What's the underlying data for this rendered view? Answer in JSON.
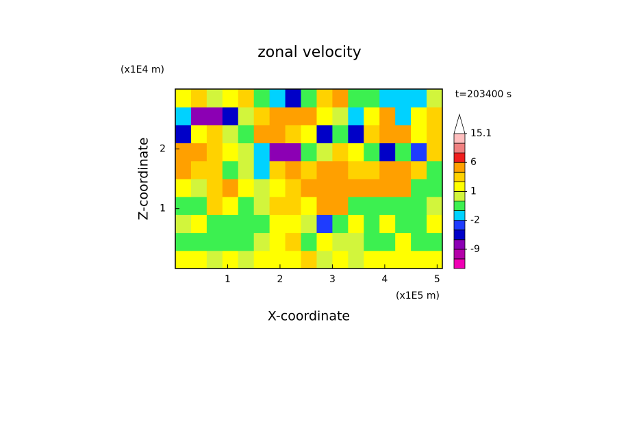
{
  "chart_data": {
    "type": "contour",
    "title": "zonal velocity",
    "x_label": "X-coordinate",
    "y_label": "Z-coordinate",
    "x_unit_label": "(x1E5 m)",
    "y_unit_label": "(x1E4 m)",
    "annotation": "t=203400 s",
    "xlim": [
      0,
      5.1
    ],
    "ylim": [
      0,
      3
    ],
    "xticks": [
      1,
      2,
      3,
      4,
      5
    ],
    "yticks": [
      1,
      2
    ],
    "contour_levels": [
      -15,
      -12,
      -9,
      -6,
      -3,
      -2,
      -1,
      0,
      1,
      2,
      3,
      6,
      9,
      12,
      15.1
    ],
    "colors": [
      "#f000b4",
      "#b400a8",
      "#8c00b4",
      "#0000c8",
      "#1e3cff",
      "#00d2ff",
      "#3cf050",
      "#d2f53c",
      "#ffff00",
      "#ffd200",
      "#ffa000",
      "#f01e1e",
      "#f08080",
      "#ffbebe",
      "#ffffff"
    ],
    "colorbar_ticks": [
      15.1,
      6,
      1,
      -2,
      -9
    ],
    "values": [
      [
        1,
        1,
        0,
        1,
        0,
        1,
        1,
        1,
        2,
        0,
        1,
        0,
        1,
        1,
        1,
        1,
        1
      ],
      [
        -1,
        -1,
        -1,
        -1,
        -1,
        0,
        1,
        2,
        -1,
        1,
        0,
        0,
        -1,
        -1,
        1,
        -1,
        -1
      ],
      [
        0,
        1,
        -1,
        -1,
        -1,
        -1,
        1,
        1,
        0,
        -3,
        -1,
        1,
        -1,
        1,
        -1,
        -1,
        1
      ],
      [
        -1,
        -1,
        2,
        1,
        -1,
        0,
        2,
        2,
        1,
        3,
        3,
        -1,
        -1,
        -1,
        -1,
        -1,
        0
      ],
      [
        1,
        0,
        2,
        3,
        1,
        0,
        1,
        2,
        3,
        5,
        4,
        3,
        3,
        4,
        4,
        -1,
        -1
      ],
      [
        3,
        2,
        2,
        -1,
        0,
        -2,
        2,
        4,
        2,
        3,
        4,
        2,
        2,
        3,
        3,
        2,
        -1
      ],
      [
        5,
        4,
        2,
        1,
        0,
        -2,
        -7,
        -8,
        -1,
        0,
        2,
        1,
        -1,
        -4,
        -1,
        -3,
        2
      ],
      [
        -4,
        1,
        2,
        0,
        -1,
        3,
        3,
        2,
        1,
        -5,
        -1,
        -4,
        2,
        4,
        3,
        1,
        2
      ],
      [
        -2,
        -7,
        -8,
        -6,
        0,
        2,
        5,
        5,
        4,
        1,
        0,
        -2,
        1,
        3,
        -2,
        1,
        2
      ],
      [
        1,
        2,
        0,
        1,
        2,
        -1,
        -2,
        -5,
        -1,
        2,
        4,
        -1,
        -1,
        -2,
        -2,
        -2,
        0
      ]
    ]
  }
}
